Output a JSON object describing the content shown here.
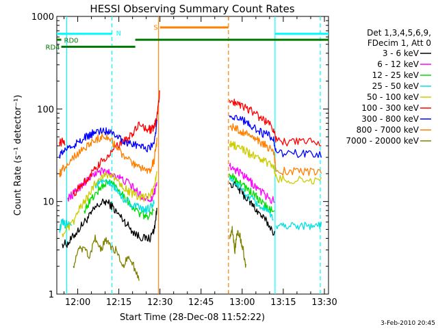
{
  "chart_data": {
    "type": "line",
    "title": "HESSI Observing Summary Count Rates",
    "xlabel": "Start Time (28-Dec-08 11:52:22)",
    "ylabel": "Count Rate (s⁻¹ detector⁻¹)",
    "x_unit": "minutes",
    "xlim": [
      "11:52:22",
      "13:31:30"
    ],
    "ylim": [
      1,
      1000
    ],
    "yscale": "log",
    "x_ticks": [
      "12:00",
      "12:15",
      "12:30",
      "12:45",
      "13:00",
      "13:15",
      "13:30"
    ],
    "y_ticks": [
      "1",
      "10",
      "100",
      "1000"
    ],
    "legend": {
      "position": "right",
      "header": [
        "Det 1,3,4,5,6,9,",
        "FDecim 1, Att 0"
      ],
      "entries": [
        {
          "label": "3 - 6 keV",
          "color": "#000000"
        },
        {
          "label": "6 - 12 keV",
          "color": "#ff00ff"
        },
        {
          "label": "12 - 25 keV",
          "color": "#00dd00"
        },
        {
          "label": "25 - 50 keV",
          "color": "#00e0e0"
        },
        {
          "label": "50 - 100 keV",
          "color": "#cccc00"
        },
        {
          "label": "100 - 300 keV",
          "color": "#ff0000"
        },
        {
          "label": "300 - 800 keV",
          "color": "#0000ff"
        },
        {
          "label": "800 - 7000 keV",
          "color": "#ff8000"
        },
        {
          "label": "7000 - 20000 keV",
          "color": "#808000"
        }
      ]
    },
    "flag_labels": {
      "n": "N",
      "s": "S",
      "rd0": "RD0",
      "rd4": "RD4"
    },
    "flag_bars": [
      {
        "label": "N",
        "color": "#00ffff",
        "y": 650,
        "spans": [
          [
            "11:52:22",
            "12:12:30"
          ],
          [
            "13:12:00",
            "13:31:30"
          ]
        ]
      },
      {
        "label": "S",
        "color": "#ff8000",
        "y": 760,
        "spans": [
          [
            "12:30:00",
            "12:55:00"
          ]
        ]
      },
      {
        "label": "RD0",
        "color": "#007700",
        "y": 560,
        "spans": [
          [
            "11:52:22",
            "11:54:00"
          ],
          [
            "12:21:00",
            "13:31:30"
          ]
        ]
      },
      {
        "label": "RD4",
        "color": "#007700",
        "y": 470,
        "spans": [
          [
            "11:54:00",
            "12:21:00"
          ]
        ]
      }
    ],
    "vertical_markers": [
      {
        "time": "11:56:00",
        "color": "#00ffff",
        "style": "solid"
      },
      {
        "time": "12:12:30",
        "color": "#00ffff",
        "style": "dashed"
      },
      {
        "time": "12:29:30",
        "color": "#ff8000",
        "style": "solid"
      },
      {
        "time": "12:55:00",
        "color": "#ff8000",
        "style": "dashed"
      },
      {
        "time": "13:12:00",
        "color": "#00ffff",
        "style": "solid"
      },
      {
        "time": "13:28:30",
        "color": "#00ffff",
        "style": "dashed"
      }
    ],
    "series": [
      {
        "name": "3 - 6 keV",
        "color": "#000000",
        "segments": [
          {
            "x": [
              2,
              4,
              6,
              8,
              10,
              12,
              14,
              16,
              18,
              20,
              22,
              24,
              26,
              28,
              30,
              32,
              34,
              35.5,
              36.5
            ],
            "y": [
              3.5,
              3.5,
              4.2,
              5,
              6,
              7,
              8.5,
              9.5,
              10,
              9,
              7.5,
              6.5,
              5.5,
              4.7,
              4.2,
              4,
              4,
              5,
              8
            ]
          },
          {
            "x": [
              63,
              65,
              67,
              69,
              71,
              73,
              75,
              77,
              79.5
            ],
            "y": [
              16,
              15,
              13,
              11,
              9.5,
              8,
              6.8,
              5.8,
              4.5
            ]
          }
        ]
      },
      {
        "name": "6 - 12 keV",
        "color": "#ff00ff",
        "segments": [
          {
            "x": [
              4,
              6,
              8,
              10,
              12,
              14,
              16,
              18,
              20,
              22,
              24,
              26,
              28,
              30,
              32,
              34,
              35.5,
              36.5
            ],
            "y": [
              11,
              12,
              14,
              16,
              18,
              20,
              21,
              21,
              20,
              19,
              17,
              16,
              14,
              12,
              11,
              10.5,
              12,
              17
            ]
          },
          {
            "x": [
              63,
              65,
              67,
              69,
              71,
              73,
              75,
              77,
              79.5
            ],
            "y": [
              24,
              22,
              20,
              18,
              16,
              14,
              12.5,
              11,
              10
            ]
          }
        ]
      },
      {
        "name": "12 - 25 keV",
        "color": "#00dd00",
        "segments": [
          {
            "x": [
              10,
              12,
              14,
              16,
              18,
              20,
              22,
              24,
              26,
              28,
              30,
              32,
              34,
              35.5
            ],
            "y": [
              8,
              10,
              12,
              14,
              16,
              16,
              14,
              12,
              10,
              8.5,
              7.5,
              7,
              7,
              8
            ]
          },
          {
            "x": [
              63,
              65,
              67,
              69,
              71,
              73,
              75,
              77,
              79.5
            ],
            "y": [
              20,
              18,
              16,
              14,
              12.5,
              11,
              9.5,
              8.5,
              7.5
            ]
          }
        ]
      },
      {
        "name": "25 - 50 keV",
        "color": "#00e0e0",
        "segments": [
          {
            "x": [
              1,
              2,
              3,
              4,
              5.5
            ],
            "y": [
              5,
              6,
              5.5,
              6,
              5.5
            ]
          },
          {
            "x": [
              14,
              16,
              18,
              20,
              22,
              24,
              26,
              28,
              30,
              32,
              34,
              35.5
            ],
            "y": [
              15,
              16,
              16,
              15,
              13,
              11,
              10,
              9,
              8.5,
              8,
              8.5,
              10
            ]
          },
          {
            "x": [
              63,
              65,
              67,
              69,
              71,
              73,
              75,
              77,
              79
            ],
            "y": [
              17,
              16,
              14,
              12,
              10.5,
              9.5,
              8.5,
              7.5,
              6.5
            ]
          },
          {
            "x": [
              80,
              83,
              86,
              89,
              92,
              95,
              96.5
            ],
            "y": [
              5.5,
              5.5,
              5.5,
              5.5,
              5.5,
              5.5,
              5.5
            ]
          }
        ]
      },
      {
        "name": "50 - 100 keV",
        "color": "#cccc00",
        "segments": [
          {
            "x": [
              2,
              4,
              6,
              8,
              10,
              12,
              14,
              16,
              18,
              20,
              22,
              24,
              26,
              28,
              30,
              32,
              34,
              35.5,
              36.5
            ],
            "y": [
              4.5,
              5,
              6,
              8,
              10,
              12,
              16,
              18,
              20,
              19,
              17,
              15,
              13,
              12,
              11,
              11,
              11.5,
              14,
              20
            ]
          },
          {
            "x": [
              63,
              65,
              67,
              69,
              71,
              73,
              75,
              77,
              79,
              80,
              84,
              88,
              92,
              96.5
            ],
            "y": [
              42,
              40,
              38,
              35,
              32,
              30,
              28,
              26,
              24,
              18,
              17,
              17,
              17,
              17
            ]
          }
        ]
      },
      {
        "name": "100 - 300 keV",
        "color": "#ff0000",
        "segments": [
          {
            "x": [
              1,
              2,
              3
            ],
            "y": [
              44,
              44,
              44
            ]
          },
          {
            "x": [
              6,
              8,
              10,
              12,
              14,
              16,
              18,
              20,
              22,
              24,
              26,
              28,
              30,
              32,
              34,
              35.5,
              36.5,
              37.5
            ],
            "y": [
              12,
              14,
              16,
              19,
              22,
              26,
              30,
              34,
              40,
              44,
              48,
              55,
              68,
              63,
              60,
              62,
              80,
              145
            ]
          },
          {
            "x": [
              63,
              65,
              67,
              69,
              71,
              73,
              75,
              77,
              79,
              80,
              84,
              88,
              92,
              96.5
            ],
            "y": [
              125,
              120,
              112,
              104,
              95,
              86,
              78,
              70,
              62,
              46,
              44,
              44,
              44,
              44
            ]
          }
        ]
      },
      {
        "name": "300 - 800 keV",
        "color": "#0000ff",
        "segments": [
          {
            "x": [
              1,
              2,
              4,
              6,
              8,
              10,
              12,
              14,
              16,
              18,
              20,
              22,
              24,
              26,
              28,
              30,
              32,
              34,
              35.5,
              36.5
            ],
            "y": [
              32,
              34,
              38,
              40,
              44,
              48,
              52,
              56,
              58,
              58,
              57,
              52,
              46,
              43,
              41,
              40,
              38,
              38,
              44,
              70
            ]
          },
          {
            "x": [
              63,
              65,
              67,
              69,
              71,
              73,
              75,
              77,
              79,
              80,
              84,
              88,
              92,
              96.5
            ],
            "y": [
              85,
              82,
              78,
              72,
              66,
              60,
              55,
              52,
              48,
              34,
              33,
              33,
              32,
              32
            ]
          }
        ]
      },
      {
        "name": "800 - 7000 keV",
        "color": "#ff8000",
        "segments": [
          {
            "x": [
              1,
              2,
              4,
              6,
              8,
              10,
              12,
              14,
              16,
              18,
              20,
              22,
              24,
              26,
              28,
              30,
              32,
              34,
              35.5,
              36.5
            ],
            "y": [
              20,
              22,
              26,
              30,
              34,
              38,
              42,
              46,
              50,
              50,
              45,
              38,
              32,
              28,
              25,
              23,
              22,
              22,
              28,
              45
            ]
          },
          {
            "x": [
              63,
              65,
              67,
              69,
              71,
              73,
              75,
              77,
              79,
              80,
              84,
              88,
              92,
              96.5
            ],
            "y": [
              65,
              62,
              58,
              54,
              50,
              46,
              42,
              39,
              36,
              22,
              21,
              21,
              21,
              21
            ]
          }
        ]
      },
      {
        "name": "7000 - 20000 keV",
        "color": "#808000",
        "segments": [
          {
            "x": [
              6,
              8,
              10,
              12,
              14,
              16,
              18,
              20,
              22,
              24,
              26,
              28,
              30
            ],
            "y": [
              2,
              3,
              3,
              2.5,
              4,
              3,
              4,
              3,
              3,
              2,
              2.5,
              2,
              1.5
            ]
          },
          {
            "x": [
              63,
              64,
              65,
              66,
              67,
              68,
              69
            ],
            "y": [
              4,
              5,
              3,
              5,
              4,
              3,
              2
            ]
          }
        ]
      }
    ]
  },
  "footer": {
    "date_stamp": "3-Feb-2010 20:45"
  }
}
